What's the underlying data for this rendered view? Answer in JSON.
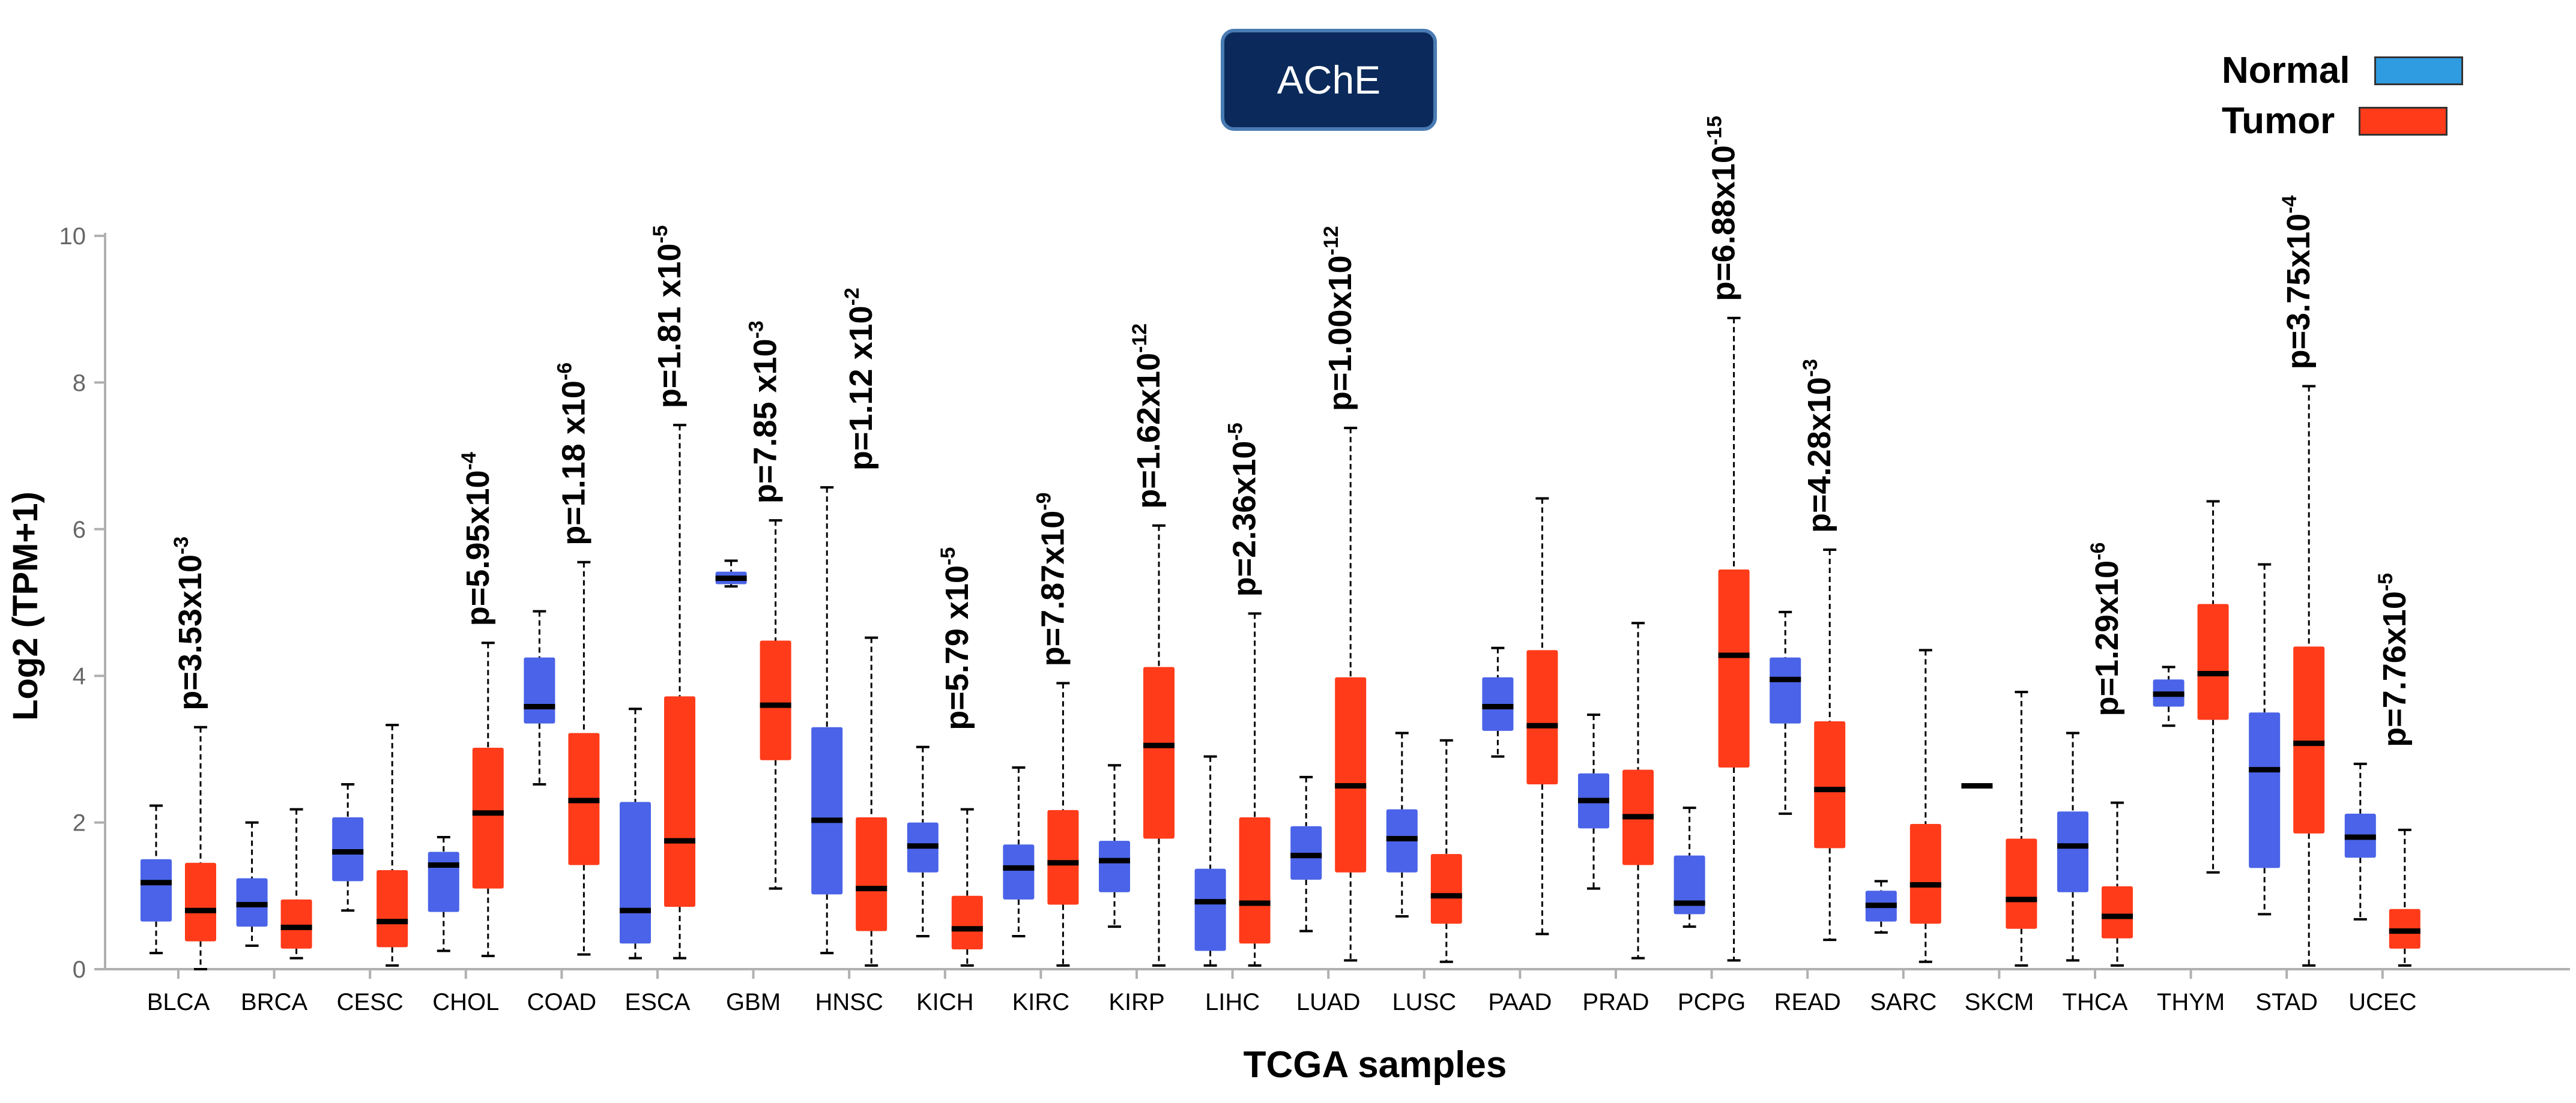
{
  "chart_data": {
    "type": "box",
    "title": "AChE",
    "xlabel": "TCGA samples",
    "ylabel": "Log2 (TPM+1)",
    "ylim": [
      0,
      10
    ],
    "yticks": [
      0,
      2,
      4,
      6,
      8,
      10
    ],
    "legend": {
      "position": "top-right",
      "entries": [
        "Normal",
        "Tumor"
      ]
    },
    "colors": {
      "Normal": "#4a63e8",
      "Tumor": "#ff3b1a",
      "legend_normal": "#2f9be0"
    },
    "categories": [
      "BLCA",
      "BRCA",
      "CESC",
      "CHOL",
      "COAD",
      "ESCA",
      "GBM",
      "HNSC",
      "KICH",
      "KIRC",
      "KIRP",
      "LIHC",
      "LUAD",
      "LUSC",
      "PAAD",
      "PRAD",
      "PCPG",
      "READ",
      "SARC",
      "SKCM",
      "THCA",
      "THYM",
      "STAD",
      "UCEC"
    ],
    "series": [
      {
        "name": "Normal",
        "boxes": [
          {
            "min": 0.22,
            "q1": 0.65,
            "median": 1.18,
            "q3": 1.5,
            "max": 2.23
          },
          {
            "min": 0.32,
            "q1": 0.58,
            "median": 0.88,
            "q3": 1.24,
            "max": 2.0
          },
          {
            "min": 0.8,
            "q1": 1.2,
            "median": 1.6,
            "q3": 2.07,
            "max": 2.52
          },
          {
            "min": 0.25,
            "q1": 0.78,
            "median": 1.42,
            "q3": 1.6,
            "max": 1.8
          },
          {
            "min": 2.52,
            "q1": 3.35,
            "median": 3.58,
            "q3": 4.25,
            "max": 4.88
          },
          {
            "min": 0.15,
            "q1": 0.35,
            "median": 0.8,
            "q3": 2.28,
            "max": 3.55
          },
          {
            "min": 5.22,
            "q1": 5.25,
            "median": 5.33,
            "q3": 5.42,
            "max": 5.57
          },
          {
            "min": 0.22,
            "q1": 1.02,
            "median": 2.03,
            "q3": 3.3,
            "max": 6.57
          },
          {
            "min": 0.45,
            "q1": 1.32,
            "median": 1.68,
            "q3": 2.0,
            "max": 3.03
          },
          {
            "min": 0.45,
            "q1": 0.95,
            "median": 1.38,
            "q3": 1.7,
            "max": 2.75
          },
          {
            "min": 0.58,
            "q1": 1.05,
            "median": 1.48,
            "q3": 1.75,
            "max": 2.78
          },
          {
            "min": 0.05,
            "q1": 0.25,
            "median": 0.92,
            "q3": 1.37,
            "max": 2.9
          },
          {
            "min": 0.52,
            "q1": 1.22,
            "median": 1.55,
            "q3": 1.95,
            "max": 2.62
          },
          {
            "min": 0.72,
            "q1": 1.32,
            "median": 1.78,
            "q3": 2.18,
            "max": 3.22
          },
          {
            "min": 2.9,
            "q1": 3.25,
            "median": 3.58,
            "q3": 3.98,
            "max": 4.38
          },
          {
            "min": 1.1,
            "q1": 1.92,
            "median": 2.3,
            "q3": 2.67,
            "max": 3.47
          },
          {
            "min": 0.58,
            "q1": 0.75,
            "median": 0.9,
            "q3": 1.55,
            "max": 2.2
          },
          {
            "min": 2.12,
            "q1": 3.35,
            "median": 3.95,
            "q3": 4.25,
            "max": 4.87
          },
          {
            "min": 0.5,
            "q1": 0.65,
            "median": 0.87,
            "q3": 1.07,
            "max": 1.2
          },
          {
            "min": 2.5,
            "q1": 2.5,
            "median": 2.5,
            "q3": 2.5,
            "max": 2.5
          },
          {
            "min": 0.12,
            "q1": 1.05,
            "median": 1.68,
            "q3": 2.15,
            "max": 3.22
          },
          {
            "min": 3.32,
            "q1": 3.58,
            "median": 3.75,
            "q3": 3.95,
            "max": 4.12
          },
          {
            "min": 0.75,
            "q1": 1.38,
            "median": 2.72,
            "q3": 3.5,
            "max": 5.52
          },
          {
            "min": 0.68,
            "q1": 1.52,
            "median": 1.8,
            "q3": 2.12,
            "max": 2.8
          }
        ]
      },
      {
        "name": "Tumor",
        "boxes": [
          {
            "min": 0.0,
            "q1": 0.38,
            "median": 0.8,
            "q3": 1.45,
            "max": 3.3
          },
          {
            "min": 0.15,
            "q1": 0.28,
            "median": 0.57,
            "q3": 0.95,
            "max": 2.18
          },
          {
            "min": 0.05,
            "q1": 0.3,
            "median": 0.65,
            "q3": 1.35,
            "max": 3.33
          },
          {
            "min": 0.18,
            "q1": 1.1,
            "median": 2.13,
            "q3": 3.02,
            "max": 4.45
          },
          {
            "min": 0.2,
            "q1": 1.42,
            "median": 2.3,
            "q3": 3.22,
            "max": 5.55
          },
          {
            "min": 0.15,
            "q1": 0.85,
            "median": 1.75,
            "q3": 3.72,
            "max": 7.42
          },
          {
            "min": 1.1,
            "q1": 2.85,
            "median": 3.6,
            "q3": 4.48,
            "max": 6.12
          },
          {
            "min": 0.05,
            "q1": 0.52,
            "median": 1.1,
            "q3": 2.07,
            "max": 4.52
          },
          {
            "min": 0.05,
            "q1": 0.27,
            "median": 0.55,
            "q3": 1.0,
            "max": 2.18
          },
          {
            "min": 0.05,
            "q1": 0.88,
            "median": 1.45,
            "q3": 2.17,
            "max": 3.9
          },
          {
            "min": 0.05,
            "q1": 1.78,
            "median": 3.05,
            "q3": 4.12,
            "max": 6.05
          },
          {
            "min": 0.05,
            "q1": 0.35,
            "median": 0.9,
            "q3": 2.07,
            "max": 4.85
          },
          {
            "min": 0.12,
            "q1": 1.32,
            "median": 2.5,
            "q3": 3.98,
            "max": 7.38
          },
          {
            "min": 0.1,
            "q1": 0.62,
            "median": 1.0,
            "q3": 1.57,
            "max": 3.12
          },
          {
            "min": 0.48,
            "q1": 2.52,
            "median": 3.32,
            "q3": 4.35,
            "max": 6.42
          },
          {
            "min": 0.15,
            "q1": 1.42,
            "median": 2.08,
            "q3": 2.72,
            "max": 4.72
          },
          {
            "min": 0.12,
            "q1": 2.75,
            "median": 4.28,
            "q3": 5.45,
            "max": 8.88
          },
          {
            "min": 0.4,
            "q1": 1.65,
            "median": 2.45,
            "q3": 3.38,
            "max": 5.72
          },
          {
            "min": 0.1,
            "q1": 0.62,
            "median": 1.15,
            "q3": 1.98,
            "max": 4.35
          },
          {
            "min": 0.05,
            "q1": 0.55,
            "median": 0.95,
            "q3": 1.78,
            "max": 3.78
          },
          {
            "min": 0.05,
            "q1": 0.42,
            "median": 0.72,
            "q3": 1.13,
            "max": 2.27
          },
          {
            "min": 1.32,
            "q1": 3.4,
            "median": 4.03,
            "q3": 4.98,
            "max": 6.38
          },
          {
            "min": 0.05,
            "q1": 1.85,
            "median": 3.08,
            "q3": 4.4,
            "max": 7.95
          },
          {
            "min": 0.05,
            "q1": 0.28,
            "median": 0.52,
            "q3": 0.82,
            "max": 1.9
          }
        ]
      }
    ],
    "annotations": [
      {
        "category": "BLCA",
        "base": "p=3.53x10",
        "exp": "-3"
      },
      {
        "category": "COAD",
        "base": "p=1.18 x10",
        "exp": "-6"
      },
      {
        "category": "CHOL",
        "base": "p=5.95x10",
        "exp": "-4"
      },
      {
        "category": "ESCA",
        "base": "p=1.81 x10",
        "exp": "-5"
      },
      {
        "category": "GBM",
        "base": "p=7.85 x10",
        "exp": "-3"
      },
      {
        "category": "HNSC",
        "base": "p=1.12 x10",
        "exp": "-2"
      },
      {
        "category": "KICH",
        "base": "p=5.79 x10",
        "exp": "-5"
      },
      {
        "category": "KIRC",
        "base": "p=7.87x10",
        "exp": "-9"
      },
      {
        "category": "KIRP",
        "base": "p=1.62x10",
        "exp": "-12"
      },
      {
        "category": "LIHC",
        "base": "p=2.36x10",
        "exp": "-5"
      },
      {
        "category": "LUAD",
        "base": "p=1.00x10",
        "exp": "-12"
      },
      {
        "category": "PCPG",
        "base": "p=6.88x10",
        "exp": "-15"
      },
      {
        "category": "READ",
        "base": "p=4.28x10",
        "exp": "-3"
      },
      {
        "category": "THCA",
        "base": "p=1.29x10",
        "exp": "-6"
      },
      {
        "category": "STAD",
        "base": "p=3.75x10",
        "exp": "-4"
      },
      {
        "category": "UCEC",
        "base": "p=7.76x10",
        "exp": "-5"
      }
    ]
  }
}
